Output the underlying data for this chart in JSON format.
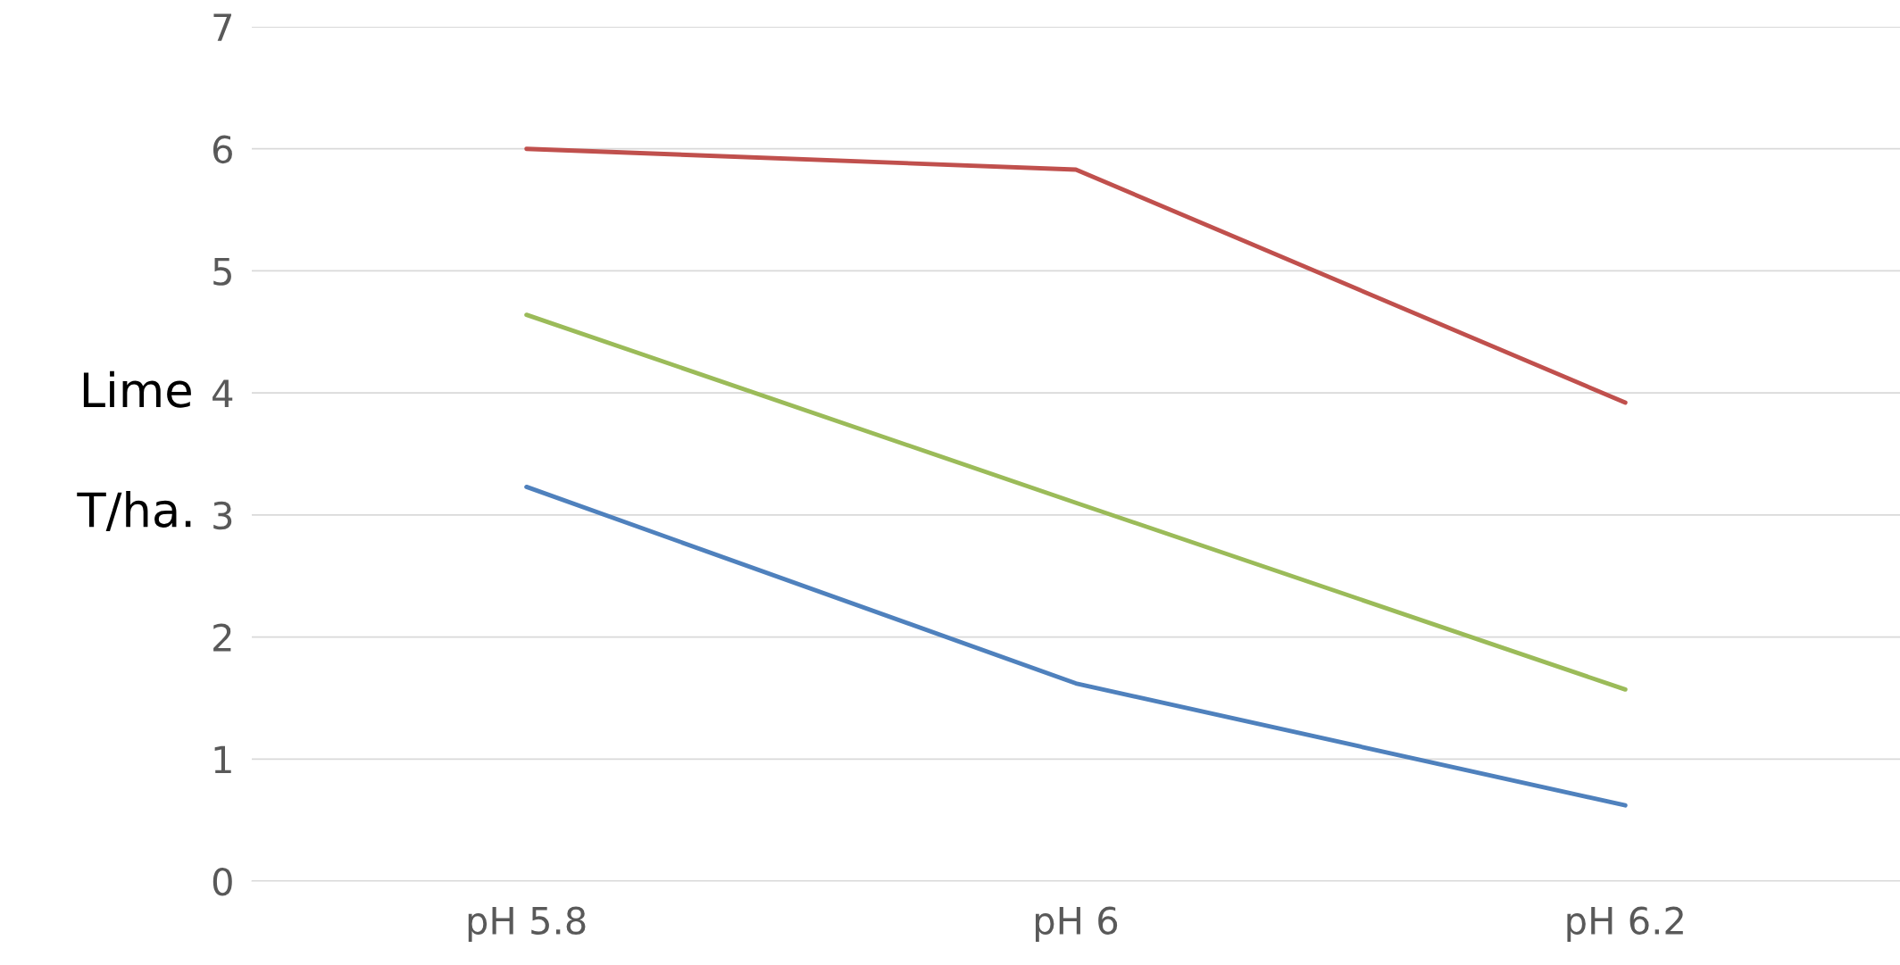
{
  "chart_data": {
    "type": "line",
    "ylabel": "Lime\n\nT/ha.",
    "categories": [
      "pH 5.8",
      "pH 6",
      "pH 6.2"
    ],
    "series": [
      {
        "color": "#c0504d",
        "values": [
          6.0,
          5.83,
          3.92
        ]
      },
      {
        "color": "#9bbb59",
        "values": [
          4.64,
          3.1,
          1.57
        ]
      },
      {
        "color": "#4f81bd",
        "values": [
          3.23,
          1.62,
          0.62
        ]
      }
    ],
    "ylim": [
      0,
      7
    ],
    "yticks": [
      0,
      1,
      2,
      3,
      4,
      5,
      6,
      7
    ],
    "grid": "y",
    "legend": false,
    "marker": "none",
    "line_style": "solid"
  }
}
